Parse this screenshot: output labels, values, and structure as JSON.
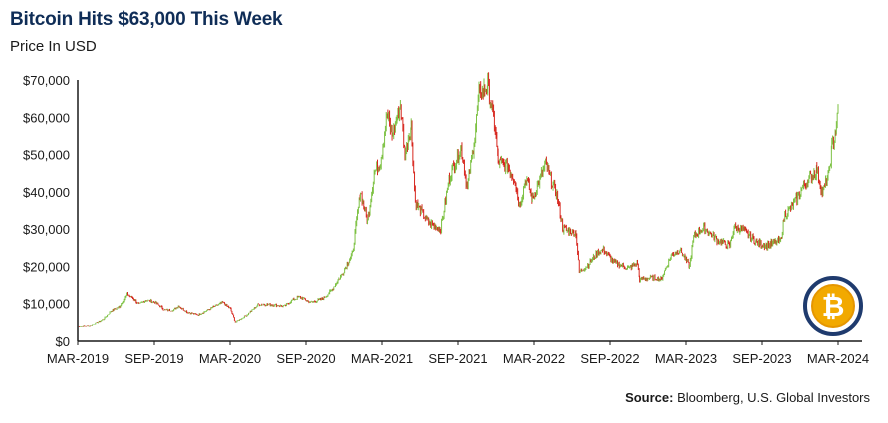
{
  "chart_data": {
    "type": "candlestick",
    "title": "Bitcoin Hits $63,000 This Week",
    "subtitle": "Price In USD",
    "source_label": "Source:",
    "source_text": " Bloomberg, U.S. Global Investors",
    "ylim": [
      0,
      70000
    ],
    "y_ticks": [
      "$0",
      "$10,000",
      "$20,000",
      "$30,000",
      "$40,000",
      "$50,000",
      "$60,000",
      "$70,000"
    ],
    "x_ticks": [
      "MAR-2019",
      "SEP-2019",
      "MAR-2020",
      "SEP-2020",
      "MAR-2021",
      "SEP-2021",
      "MAR-2022",
      "SEP-2022",
      "MAR-2023",
      "SEP-2023",
      "MAR-2024"
    ],
    "x_range": [
      "2019-03",
      "2024-03"
    ],
    "colors": {
      "up": "#7cc142",
      "down": "#d7261e",
      "axis": "#1a1a1a"
    },
    "series": [
      {
        "values": [
          [
            "2019-03-01",
            3900
          ],
          [
            "2019-04-01",
            4100
          ],
          [
            "2019-05-01",
            5700
          ],
          [
            "2019-05-20",
            8000
          ],
          [
            "2019-06-10",
            9200
          ],
          [
            "2019-06-26",
            12500
          ],
          [
            "2019-07-10",
            11500
          ],
          [
            "2019-07-25",
            9800
          ],
          [
            "2019-08-10",
            11000
          ],
          [
            "2019-09-01",
            10400
          ],
          [
            "2019-09-25",
            8300
          ],
          [
            "2019-10-15",
            8200
          ],
          [
            "2019-10-28",
            9400
          ],
          [
            "2019-11-20",
            7600
          ],
          [
            "2019-12-15",
            7000
          ],
          [
            "2020-01-15",
            8800
          ],
          [
            "2020-02-12",
            10300
          ],
          [
            "2020-03-01",
            8600
          ],
          [
            "2020-03-13",
            5000
          ],
          [
            "2020-04-10",
            7000
          ],
          [
            "2020-05-08",
            9800
          ],
          [
            "2020-06-10",
            9700
          ],
          [
            "2020-07-10",
            9300
          ],
          [
            "2020-07-28",
            11000
          ],
          [
            "2020-08-15",
            11800
          ],
          [
            "2020-09-10",
            10300
          ],
          [
            "2020-10-10",
            11400
          ],
          [
            "2020-10-30",
            13500
          ],
          [
            "2020-11-25",
            18000
          ],
          [
            "2020-12-20",
            23500
          ],
          [
            "2021-01-08",
            40000
          ],
          [
            "2021-01-25",
            32000
          ],
          [
            "2021-02-10",
            45000
          ],
          [
            "2021-02-25",
            48000
          ],
          [
            "2021-03-13",
            61000
          ],
          [
            "2021-03-25",
            55000
          ],
          [
            "2021-04-14",
            63500
          ],
          [
            "2021-04-25",
            50000
          ],
          [
            "2021-05-10",
            58000
          ],
          [
            "2021-05-20",
            37000
          ],
          [
            "2021-06-22",
            31500
          ],
          [
            "2021-07-20",
            30000
          ],
          [
            "2021-08-10",
            44000
          ],
          [
            "2021-08-25",
            48000
          ],
          [
            "2021-09-07",
            52000
          ],
          [
            "2021-09-22",
            41000
          ],
          [
            "2021-10-10",
            55000
          ],
          [
            "2021-10-20",
            66000
          ],
          [
            "2021-11-10",
            68500
          ],
          [
            "2021-11-28",
            57000
          ],
          [
            "2021-12-05",
            48000
          ],
          [
            "2021-12-28",
            47000
          ],
          [
            "2022-01-15",
            43000
          ],
          [
            "2022-01-25",
            36000
          ],
          [
            "2022-02-10",
            44000
          ],
          [
            "2022-02-25",
            38000
          ],
          [
            "2022-03-29",
            47500
          ],
          [
            "2022-04-25",
            39000
          ],
          [
            "2022-05-10",
            30000
          ],
          [
            "2022-06-10",
            29000
          ],
          [
            "2022-06-18",
            18500
          ],
          [
            "2022-07-10",
            20500
          ],
          [
            "2022-07-30",
            23500
          ],
          [
            "2022-08-15",
            24500
          ],
          [
            "2022-09-10",
            21000
          ],
          [
            "2022-10-15",
            19500
          ],
          [
            "2022-11-05",
            21000
          ],
          [
            "2022-11-10",
            16500
          ],
          [
            "2022-12-15",
            17000
          ],
          [
            "2023-01-01",
            16500
          ],
          [
            "2023-01-25",
            23000
          ],
          [
            "2023-02-15",
            24500
          ],
          [
            "2023-03-10",
            20000
          ],
          [
            "2023-03-20",
            28000
          ],
          [
            "2023-04-14",
            30500
          ],
          [
            "2023-05-15",
            27000
          ],
          [
            "2023-06-15",
            25500
          ],
          [
            "2023-06-25",
            30500
          ],
          [
            "2023-07-15",
            30000
          ],
          [
            "2023-08-17",
            26500
          ],
          [
            "2023-09-10",
            25500
          ],
          [
            "2023-10-15",
            27000
          ],
          [
            "2023-10-25",
            34000
          ],
          [
            "2023-11-15",
            36500
          ],
          [
            "2023-12-05",
            41000
          ],
          [
            "2023-12-20",
            43000
          ],
          [
            "2024-01-10",
            46000
          ],
          [
            "2024-01-23",
            39500
          ],
          [
            "2024-02-08",
            45000
          ],
          [
            "2024-02-15",
            52000
          ],
          [
            "2024-02-26",
            57000
          ],
          [
            "2024-03-01",
            63500
          ]
        ]
      }
    ]
  },
  "logo": {
    "symbol": "₿",
    "colors": {
      "ring": "#1f3b6e",
      "coin": "#f2a900"
    }
  }
}
